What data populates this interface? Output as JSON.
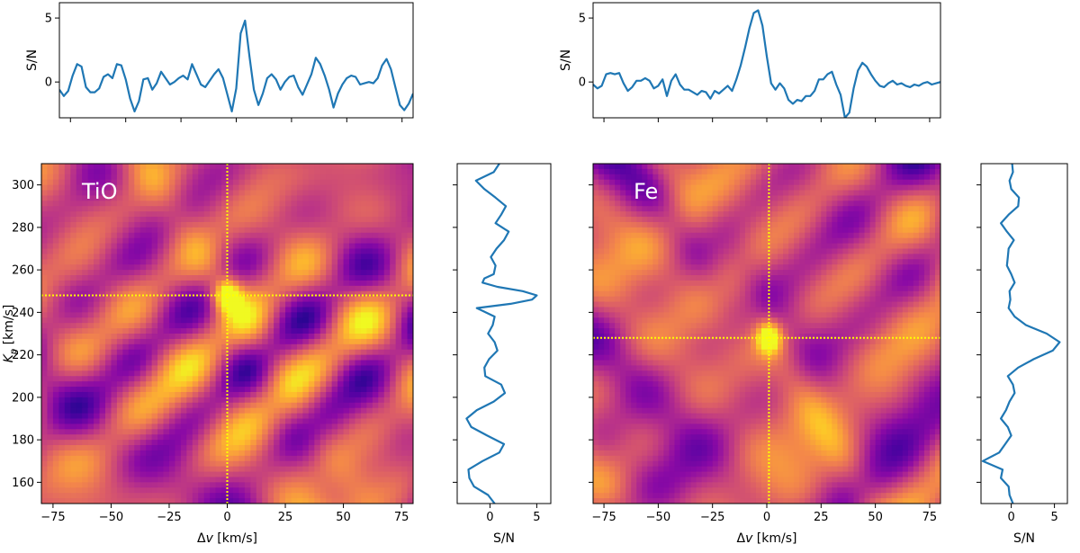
{
  "chart_data": [
    {
      "id": "tio",
      "panel_label": "TiO",
      "type": "heatmap",
      "colormap": "plasma",
      "x_label_prefix": "Δ",
      "x_label_var": "v",
      "x_label_suffix": " [km/s]",
      "y_label_var": "K",
      "y_label_sub": "p",
      "y_label_suffix": " [km/s]",
      "xlim": [
        -80,
        80
      ],
      "ylim": [
        150,
        310
      ],
      "x_ticks": [
        -75,
        -50,
        -25,
        0,
        25,
        50,
        75
      ],
      "x_tick_labels": [
        "−75",
        "−50",
        "−25",
        "0",
        "25",
        "50",
        "75"
      ],
      "y_ticks": [
        160,
        180,
        200,
        220,
        240,
        260,
        280,
        300
      ],
      "y_tick_labels": [
        "160",
        "180",
        "200",
        "220",
        "240",
        "260",
        "280",
        "300"
      ],
      "marker": {
        "dv": 0,
        "kp": 248
      },
      "marker_color": "#ffff00",
      "top_panel": {
        "type": "line",
        "ylabel": "S/N",
        "ylim": [
          -2.8,
          6.2
        ],
        "y_ticks": [
          0,
          5
        ],
        "y_tick_labels": [
          "0",
          "5"
        ],
        "dv": [
          -80,
          -78,
          -76,
          -74,
          -72,
          -70,
          -68,
          -66,
          -64,
          -62,
          -60,
          -58,
          -56,
          -54,
          -52,
          -50,
          -48,
          -46,
          -44,
          -42,
          -40,
          -38,
          -36,
          -34,
          -32,
          -30,
          -28,
          -26,
          -24,
          -22,
          -20,
          -18,
          -16,
          -14,
          -12,
          -10,
          -8,
          -6,
          -4,
          -2,
          0,
          2,
          4,
          6,
          8,
          10,
          12,
          14,
          16,
          18,
          20,
          22,
          24,
          26,
          28,
          30,
          32,
          34,
          36,
          38,
          40,
          42,
          44,
          46,
          48,
          50,
          52,
          54,
          56,
          58,
          60,
          62,
          64,
          66,
          68,
          70,
          72,
          74,
          76,
          78,
          80
        ],
        "snr": [
          -0.6,
          -1.1,
          -0.7,
          0.5,
          1.4,
          1.2,
          -0.4,
          -0.8,
          -0.8,
          -0.5,
          0.4,
          0.6,
          0.3,
          1.4,
          1.3,
          0.2,
          -1.3,
          -2.3,
          -1.5,
          0.2,
          0.3,
          -0.6,
          -0.1,
          0.8,
          0.3,
          -0.2,
          0.0,
          0.3,
          0.5,
          0.2,
          1.4,
          0.6,
          -0.2,
          -0.4,
          0.1,
          0.6,
          1.0,
          0.3,
          -1.0,
          -2.3,
          -0.5,
          3.8,
          4.8,
          2.0,
          -0.6,
          -1.8,
          -0.9,
          0.3,
          0.6,
          0.2,
          -0.6,
          0.0,
          0.4,
          0.5,
          -0.4,
          -1.0,
          -0.2,
          0.6,
          1.9,
          1.4,
          0.5,
          -0.6,
          -2.0,
          -0.9,
          -0.2,
          0.3,
          0.5,
          0.4,
          -0.2,
          -0.1,
          0.0,
          -0.1,
          0.3,
          1.3,
          1.8,
          1.0,
          -0.4,
          -1.8,
          -2.2,
          -1.7,
          -0.9,
          -0.4
        ]
      },
      "side_panel": {
        "type": "line",
        "xlabel": "S/N",
        "xlim": [
          -3.5,
          6.5
        ],
        "x_ticks": [
          0,
          5
        ],
        "x_tick_labels": [
          "0",
          "5"
        ],
        "kp": [
          150,
          154,
          158,
          162,
          166,
          170,
          174,
          178,
          182,
          186,
          190,
          194,
          198,
          202,
          206,
          210,
          214,
          218,
          222,
          226,
          230,
          234,
          238,
          242,
          244,
          246,
          248,
          250,
          252,
          254,
          256,
          258,
          262,
          266,
          270,
          274,
          278,
          282,
          286,
          290,
          294,
          298,
          302,
          306,
          310
        ],
        "snr": [
          0.5,
          -0.2,
          -1.7,
          -2.2,
          -2.3,
          -0.8,
          1.0,
          1.5,
          -0.3,
          -2.0,
          -2.5,
          -1.4,
          0.4,
          1.6,
          1.2,
          -0.5,
          -0.6,
          -0.1,
          0.8,
          0.5,
          -0.2,
          0.3,
          0.5,
          -1.4,
          2.2,
          4.5,
          5.0,
          3.5,
          0.8,
          -0.8,
          -0.6,
          0.4,
          0.6,
          0.1,
          0.7,
          1.5,
          2.0,
          0.6,
          1.2,
          1.7,
          0.6,
          -0.6,
          -1.5,
          0.4,
          1.0
        ]
      }
    },
    {
      "id": "fe",
      "panel_label": "Fe",
      "type": "heatmap",
      "colormap": "plasma",
      "x_label_prefix": "Δ",
      "x_label_var": "v",
      "x_label_suffix": " [km/s]",
      "xlim": [
        -80,
        80
      ],
      "ylim": [
        150,
        310
      ],
      "x_ticks": [
        -75,
        -50,
        -25,
        0,
        25,
        50,
        75
      ],
      "x_tick_labels": [
        "−75",
        "−50",
        "−25",
        "0",
        "25",
        "50",
        "75"
      ],
      "y_ticks": [
        160,
        180,
        200,
        220,
        240,
        260,
        280,
        300
      ],
      "y_tick_labels": [],
      "marker": {
        "dv": 1,
        "kp": 228
      },
      "marker_color": "#ffff00",
      "top_panel": {
        "type": "line",
        "ylabel": "S/N",
        "ylim": [
          -2.8,
          6.2
        ],
        "y_ticks": [
          0,
          5
        ],
        "y_tick_labels": [
          "0",
          "5"
        ],
        "dv": [
          -80,
          -78,
          -76,
          -74,
          -72,
          -70,
          -68,
          -66,
          -64,
          -62,
          -60,
          -58,
          -56,
          -54,
          -52,
          -50,
          -48,
          -46,
          -44,
          -42,
          -40,
          -38,
          -36,
          -34,
          -32,
          -30,
          -28,
          -26,
          -24,
          -22,
          -20,
          -18,
          -16,
          -14,
          -12,
          -10,
          -8,
          -6,
          -4,
          -2,
          0,
          2,
          4,
          6,
          8,
          10,
          12,
          14,
          16,
          18,
          20,
          22,
          24,
          26,
          28,
          30,
          32,
          34,
          36,
          38,
          40,
          42,
          44,
          46,
          48,
          50,
          52,
          54,
          56,
          58,
          60,
          62,
          64,
          66,
          68,
          70,
          72,
          74,
          76,
          78,
          80
        ],
        "snr": [
          -0.2,
          -0.5,
          -0.3,
          0.6,
          0.7,
          0.6,
          0.7,
          -0.1,
          -0.7,
          -0.4,
          0.1,
          0.1,
          0.3,
          0.1,
          -0.5,
          -0.3,
          0.2,
          -1.1,
          0.1,
          0.6,
          -0.2,
          -0.6,
          -0.6,
          -0.8,
          -1.0,
          -0.7,
          -0.8,
          -1.3,
          -0.7,
          -0.9,
          -0.6,
          -0.3,
          -0.7,
          0.2,
          1.3,
          2.7,
          4.2,
          5.4,
          5.6,
          4.4,
          2.0,
          -0.1,
          -0.6,
          -0.1,
          -0.5,
          -1.4,
          -1.7,
          -1.4,
          -1.5,
          -1.1,
          -1.1,
          -0.7,
          0.2,
          0.2,
          0.6,
          0.8,
          -0.2,
          -1.0,
          -2.8,
          -2.4,
          -0.5,
          0.9,
          1.5,
          1.2,
          0.6,
          0.1,
          -0.3,
          -0.4,
          -0.1,
          0.1,
          -0.2,
          -0.1,
          -0.3,
          -0.4,
          -0.2,
          -0.3,
          -0.1,
          0.0,
          -0.2,
          -0.1,
          0.0
        ]
      },
      "side_panel": {
        "type": "line",
        "xlabel": "S/N",
        "xlim": [
          -3.5,
          6.5
        ],
        "x_ticks": [
          0,
          5
        ],
        "x_tick_labels": [
          "0",
          "5"
        ],
        "kp": [
          150,
          154,
          158,
          162,
          166,
          170,
          174,
          178,
          182,
          186,
          190,
          194,
          198,
          202,
          206,
          210,
          214,
          218,
          222,
          226,
          230,
          234,
          238,
          242,
          246,
          250,
          254,
          258,
          262,
          266,
          270,
          274,
          278,
          282,
          286,
          290,
          294,
          298,
          302,
          306,
          310
        ],
        "snr": [
          0.2,
          -0.2,
          -0.3,
          -1.2,
          -1.0,
          -3.3,
          -1.4,
          -0.7,
          0.0,
          -0.4,
          -1.2,
          -0.6,
          -0.2,
          0.4,
          0.2,
          -0.4,
          0.8,
          2.6,
          4.8,
          5.6,
          4.1,
          1.7,
          0.4,
          -0.3,
          -0.1,
          -0.2,
          0.4,
          0.0,
          -0.5,
          -0.4,
          -0.3,
          0.3,
          -0.5,
          -1.2,
          -0.3,
          0.8,
          0.9,
          0.0,
          -0.2,
          0.2,
          0.1
        ]
      }
    }
  ]
}
